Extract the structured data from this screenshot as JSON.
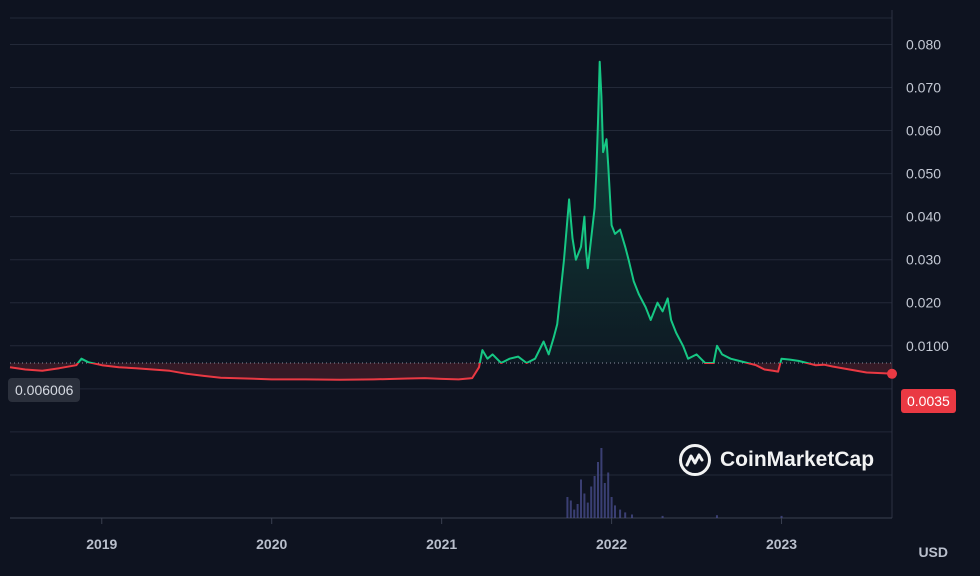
{
  "chart_data": {
    "type": "line",
    "currency_label": "USD",
    "reference_label": "0.006006",
    "reference_value": 0.006006,
    "last_label": "0.0035",
    "last_value": 0.0035,
    "watermark": "CoinMarketCap",
    "colors": {
      "above": "#16c784",
      "below": "#ea3943",
      "background": "#0e1320",
      "volume": "#4a4f8f"
    },
    "ylim": [
      -0.03,
      0.088
    ],
    "y_ticks": [
      0.08,
      0.07,
      0.06,
      0.05,
      0.04,
      0.03,
      0.02,
      0.01
    ],
    "y_tick_labels": [
      "0.080",
      "0.070",
      "0.060",
      "0.050",
      "0.040",
      "0.030",
      "0.020",
      "0.0100"
    ],
    "x_ticks": [
      2019,
      2020,
      2021,
      2022,
      2023
    ],
    "x_tick_labels": [
      "2019",
      "2020",
      "2021",
      "2022",
      "2023"
    ],
    "xlim": [
      2018.46,
      2023.65
    ],
    "grid": true,
    "series": [
      {
        "points": [
          [
            2018.46,
            0.005
          ],
          [
            2018.55,
            0.0045
          ],
          [
            2018.65,
            0.0042
          ],
          [
            2018.75,
            0.0048
          ],
          [
            2018.85,
            0.0055
          ],
          [
            2018.88,
            0.007
          ],
          [
            2018.92,
            0.0062
          ],
          [
            2019.0,
            0.0055
          ],
          [
            2019.1,
            0.005
          ],
          [
            2019.2,
            0.0048
          ],
          [
            2019.3,
            0.0045
          ],
          [
            2019.4,
            0.0042
          ],
          [
            2019.5,
            0.0035
          ],
          [
            2019.6,
            0.003
          ],
          [
            2019.7,
            0.0026
          ],
          [
            2019.85,
            0.0024
          ],
          [
            2020.0,
            0.0022
          ],
          [
            2020.2,
            0.0022
          ],
          [
            2020.4,
            0.0021
          ],
          [
            2020.6,
            0.0022
          ],
          [
            2020.8,
            0.0024
          ],
          [
            2020.9,
            0.0025
          ],
          [
            2021.0,
            0.0023
          ],
          [
            2021.1,
            0.0022
          ],
          [
            2021.18,
            0.0025
          ],
          [
            2021.22,
            0.005
          ],
          [
            2021.24,
            0.009
          ],
          [
            2021.27,
            0.007
          ],
          [
            2021.3,
            0.008
          ],
          [
            2021.35,
            0.006
          ],
          [
            2021.4,
            0.007
          ],
          [
            2021.45,
            0.0075
          ],
          [
            2021.5,
            0.006
          ],
          [
            2021.55,
            0.007
          ],
          [
            2021.6,
            0.011
          ],
          [
            2021.63,
            0.008
          ],
          [
            2021.66,
            0.012
          ],
          [
            2021.68,
            0.015
          ],
          [
            2021.72,
            0.03
          ],
          [
            2021.75,
            0.044
          ],
          [
            2021.77,
            0.035
          ],
          [
            2021.79,
            0.03
          ],
          [
            2021.82,
            0.033
          ],
          [
            2021.84,
            0.04
          ],
          [
            2021.85,
            0.032
          ],
          [
            2021.86,
            0.028
          ],
          [
            2021.88,
            0.035
          ],
          [
            2021.9,
            0.042
          ],
          [
            2021.91,
            0.05
          ],
          [
            2021.92,
            0.062
          ],
          [
            2021.93,
            0.076
          ],
          [
            2021.94,
            0.068
          ],
          [
            2021.95,
            0.055
          ],
          [
            2021.97,
            0.058
          ],
          [
            2021.98,
            0.052
          ],
          [
            2022.0,
            0.038
          ],
          [
            2022.02,
            0.036
          ],
          [
            2022.05,
            0.037
          ],
          [
            2022.08,
            0.033
          ],
          [
            2022.1,
            0.03
          ],
          [
            2022.13,
            0.025
          ],
          [
            2022.16,
            0.022
          ],
          [
            2022.2,
            0.019
          ],
          [
            2022.23,
            0.016
          ],
          [
            2022.27,
            0.02
          ],
          [
            2022.3,
            0.018
          ],
          [
            2022.33,
            0.021
          ],
          [
            2022.35,
            0.016
          ],
          [
            2022.38,
            0.013
          ],
          [
            2022.42,
            0.01
          ],
          [
            2022.45,
            0.007
          ],
          [
            2022.5,
            0.008
          ],
          [
            2022.55,
            0.006
          ],
          [
            2022.6,
            0.006
          ],
          [
            2022.62,
            0.01
          ],
          [
            2022.65,
            0.008
          ],
          [
            2022.7,
            0.007
          ],
          [
            2022.75,
            0.0065
          ],
          [
            2022.8,
            0.006
          ],
          [
            2022.85,
            0.0055
          ],
          [
            2022.9,
            0.0045
          ],
          [
            2022.95,
            0.0042
          ],
          [
            2022.98,
            0.004
          ],
          [
            2023.0,
            0.007
          ],
          [
            2023.05,
            0.0068
          ],
          [
            2023.1,
            0.0065
          ],
          [
            2023.15,
            0.006
          ],
          [
            2023.2,
            0.0055
          ],
          [
            2023.25,
            0.0056
          ],
          [
            2023.3,
            0.0052
          ],
          [
            2023.4,
            0.0045
          ],
          [
            2023.5,
            0.0038
          ],
          [
            2023.6,
            0.0036
          ],
          [
            2023.65,
            0.0035
          ]
        ]
      }
    ],
    "volume": [
      [
        2021.74,
        0.3
      ],
      [
        2021.76,
        0.25
      ],
      [
        2021.78,
        0.12
      ],
      [
        2021.8,
        0.2
      ],
      [
        2021.82,
        0.55
      ],
      [
        2021.84,
        0.35
      ],
      [
        2021.86,
        0.22
      ],
      [
        2021.88,
        0.45
      ],
      [
        2021.9,
        0.6
      ],
      [
        2021.92,
        0.8
      ],
      [
        2021.94,
        1.0
      ],
      [
        2021.96,
        0.5
      ],
      [
        2021.98,
        0.65
      ],
      [
        2022.0,
        0.3
      ],
      [
        2022.02,
        0.18
      ],
      [
        2022.05,
        0.12
      ],
      [
        2022.08,
        0.08
      ],
      [
        2022.12,
        0.05
      ],
      [
        2022.3,
        0.03
      ],
      [
        2022.62,
        0.04
      ],
      [
        2023.0,
        0.03
      ]
    ]
  }
}
